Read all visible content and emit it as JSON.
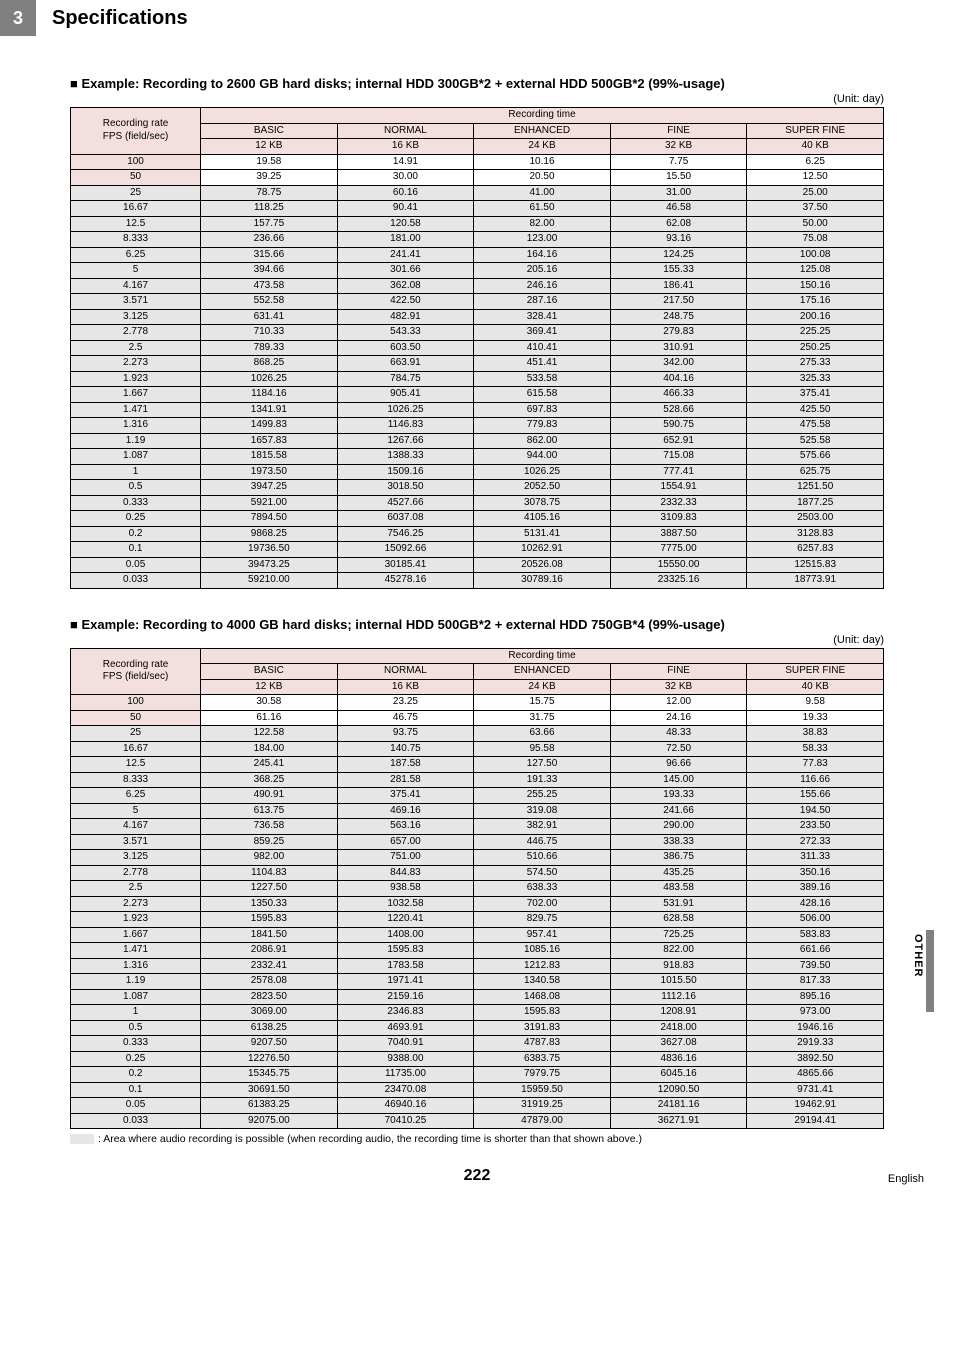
{
  "chapter_number": "3",
  "chapter_title": "Specifications",
  "unit_label": "(Unit: day)",
  "sidebar": "OTHER",
  "page_number": "222",
  "language": "English",
  "note": ": Area where audio recording is possible (when recording audio, the recording time is shorter than that shown above.)",
  "tables": [
    {
      "title": "Example: Recording to 2600 GB hard disks; internal HDD 300GB*2 + external HDD 500GB*2 (99%-usage)",
      "col_rate_label": "Recording rate FPS (field/sec)",
      "col_group_label": "Recording time",
      "columns": [
        {
          "name": "BASIC",
          "sub": "12 KB"
        },
        {
          "name": "NORMAL",
          "sub": "16 KB"
        },
        {
          "name": "ENHANCED",
          "sub": "24 KB"
        },
        {
          "name": "FINE",
          "sub": "32 KB"
        },
        {
          "name": "SUPER FINE",
          "sub": "40 KB"
        }
      ],
      "rows": [
        {
          "r": "100",
          "v": [
            "19.58",
            "14.91",
            "10.16",
            "7.75",
            "6.25"
          ],
          "audio": false
        },
        {
          "r": "50",
          "v": [
            "39.25",
            "30.00",
            "20.50",
            "15.50",
            "12.50"
          ],
          "audio": false
        },
        {
          "r": "25",
          "v": [
            "78.75",
            "60.16",
            "41.00",
            "31.00",
            "25.00"
          ],
          "audio": true
        },
        {
          "r": "16.67",
          "v": [
            "118.25",
            "90.41",
            "61.50",
            "46.58",
            "37.50"
          ],
          "audio": true
        },
        {
          "r": "12.5",
          "v": [
            "157.75",
            "120.58",
            "82.00",
            "62.08",
            "50.00"
          ],
          "audio": true
        },
        {
          "r": "8.333",
          "v": [
            "236.66",
            "181.00",
            "123.00",
            "93.16",
            "75.08"
          ],
          "audio": true
        },
        {
          "r": "6.25",
          "v": [
            "315.66",
            "241.41",
            "164.16",
            "124.25",
            "100.08"
          ],
          "audio": true
        },
        {
          "r": "5",
          "v": [
            "394.66",
            "301.66",
            "205.16",
            "155.33",
            "125.08"
          ],
          "audio": true
        },
        {
          "r": "4.167",
          "v": [
            "473.58",
            "362.08",
            "246.16",
            "186.41",
            "150.16"
          ],
          "audio": true
        },
        {
          "r": "3.571",
          "v": [
            "552.58",
            "422.50",
            "287.16",
            "217.50",
            "175.16"
          ],
          "audio": true
        },
        {
          "r": "3.125",
          "v": [
            "631.41",
            "482.91",
            "328.41",
            "248.75",
            "200.16"
          ],
          "audio": true
        },
        {
          "r": "2.778",
          "v": [
            "710.33",
            "543.33",
            "369.41",
            "279.83",
            "225.25"
          ],
          "audio": true
        },
        {
          "r": "2.5",
          "v": [
            "789.33",
            "603.50",
            "410.41",
            "310.91",
            "250.25"
          ],
          "audio": true
        },
        {
          "r": "2.273",
          "v": [
            "868.25",
            "663.91",
            "451.41",
            "342.00",
            "275.33"
          ],
          "audio": true
        },
        {
          "r": "1.923",
          "v": [
            "1026.25",
            "784.75",
            "533.58",
            "404.16",
            "325.33"
          ],
          "audio": true
        },
        {
          "r": "1.667",
          "v": [
            "1184.16",
            "905.41",
            "615.58",
            "466.33",
            "375.41"
          ],
          "audio": true
        },
        {
          "r": "1.471",
          "v": [
            "1341.91",
            "1026.25",
            "697.83",
            "528.66",
            "425.50"
          ],
          "audio": true
        },
        {
          "r": "1.316",
          "v": [
            "1499.83",
            "1146.83",
            "779.83",
            "590.75",
            "475.58"
          ],
          "audio": true
        },
        {
          "r": "1.19",
          "v": [
            "1657.83",
            "1267.66",
            "862.00",
            "652.91",
            "525.58"
          ],
          "audio": true
        },
        {
          "r": "1.087",
          "v": [
            "1815.58",
            "1388.33",
            "944.00",
            "715.08",
            "575.66"
          ],
          "audio": true
        },
        {
          "r": "1",
          "v": [
            "1973.50",
            "1509.16",
            "1026.25",
            "777.41",
            "625.75"
          ],
          "audio": true
        },
        {
          "r": "0.5",
          "v": [
            "3947.25",
            "3018.50",
            "2052.50",
            "1554.91",
            "1251.50"
          ],
          "audio": true
        },
        {
          "r": "0.333",
          "v": [
            "5921.00",
            "4527.66",
            "3078.75",
            "2332.33",
            "1877.25"
          ],
          "audio": true
        },
        {
          "r": "0.25",
          "v": [
            "7894.50",
            "6037.08",
            "4105.16",
            "3109.83",
            "2503.00"
          ],
          "audio": true
        },
        {
          "r": "0.2",
          "v": [
            "9868.25",
            "7546.25",
            "5131.41",
            "3887.50",
            "3128.83"
          ],
          "audio": true
        },
        {
          "r": "0.1",
          "v": [
            "19736.50",
            "15092.66",
            "10262.91",
            "7775.00",
            "6257.83"
          ],
          "audio": true
        },
        {
          "r": "0.05",
          "v": [
            "39473.25",
            "30185.41",
            "20526.08",
            "15550.00",
            "12515.83"
          ],
          "audio": true
        },
        {
          "r": "0.033",
          "v": [
            "59210.00",
            "45278.16",
            "30789.16",
            "23325.16",
            "18773.91"
          ],
          "audio": true
        }
      ]
    },
    {
      "title": "Example: Recording to 4000 GB hard disks; internal HDD 500GB*2 + external HDD 750GB*4 (99%-usage)",
      "col_rate_label": "Recording rate FPS (field/sec)",
      "col_group_label": "Recording time",
      "columns": [
        {
          "name": "BASIC",
          "sub": "12 KB"
        },
        {
          "name": "NORMAL",
          "sub": "16 KB"
        },
        {
          "name": "ENHANCED",
          "sub": "24 KB"
        },
        {
          "name": "FINE",
          "sub": "32 KB"
        },
        {
          "name": "SUPER FINE",
          "sub": "40 KB"
        }
      ],
      "rows": [
        {
          "r": "100",
          "v": [
            "30.58",
            "23.25",
            "15.75",
            "12.00",
            "9.58"
          ],
          "audio": false
        },
        {
          "r": "50",
          "v": [
            "61.16",
            "46.75",
            "31.75",
            "24.16",
            "19.33"
          ],
          "audio": false
        },
        {
          "r": "25",
          "v": [
            "122.58",
            "93.75",
            "63.66",
            "48.33",
            "38.83"
          ],
          "audio": true
        },
        {
          "r": "16.67",
          "v": [
            "184.00",
            "140.75",
            "95.58",
            "72.50",
            "58.33"
          ],
          "audio": true
        },
        {
          "r": "12.5",
          "v": [
            "245.41",
            "187.58",
            "127.50",
            "96.66",
            "77.83"
          ],
          "audio": true
        },
        {
          "r": "8.333",
          "v": [
            "368.25",
            "281.58",
            "191.33",
            "145.00",
            "116.66"
          ],
          "audio": true
        },
        {
          "r": "6.25",
          "v": [
            "490.91",
            "375.41",
            "255.25",
            "193.33",
            "155.66"
          ],
          "audio": true
        },
        {
          "r": "5",
          "v": [
            "613.75",
            "469.16",
            "319.08",
            "241.66",
            "194.50"
          ],
          "audio": true
        },
        {
          "r": "4.167",
          "v": [
            "736.58",
            "563.16",
            "382.91",
            "290.00",
            "233.50"
          ],
          "audio": true
        },
        {
          "r": "3.571",
          "v": [
            "859.25",
            "657.00",
            "446.75",
            "338.33",
            "272.33"
          ],
          "audio": true
        },
        {
          "r": "3.125",
          "v": [
            "982.00",
            "751.00",
            "510.66",
            "386.75",
            "311.33"
          ],
          "audio": true
        },
        {
          "r": "2.778",
          "v": [
            "1104.83",
            "844.83",
            "574.50",
            "435.25",
            "350.16"
          ],
          "audio": true
        },
        {
          "r": "2.5",
          "v": [
            "1227.50",
            "938.58",
            "638.33",
            "483.58",
            "389.16"
          ],
          "audio": true
        },
        {
          "r": "2.273",
          "v": [
            "1350.33",
            "1032.58",
            "702.00",
            "531.91",
            "428.16"
          ],
          "audio": true
        },
        {
          "r": "1.923",
          "v": [
            "1595.83",
            "1220.41",
            "829.75",
            "628.58",
            "506.00"
          ],
          "audio": true
        },
        {
          "r": "1.667",
          "v": [
            "1841.50",
            "1408.00",
            "957.41",
            "725.25",
            "583.83"
          ],
          "audio": true
        },
        {
          "r": "1.471",
          "v": [
            "2086.91",
            "1595.83",
            "1085.16",
            "822.00",
            "661.66"
          ],
          "audio": true
        },
        {
          "r": "1.316",
          "v": [
            "2332.41",
            "1783.58",
            "1212.83",
            "918.83",
            "739.50"
          ],
          "audio": true
        },
        {
          "r": "1.19",
          "v": [
            "2578.08",
            "1971.41",
            "1340.58",
            "1015.50",
            "817.33"
          ],
          "audio": true
        },
        {
          "r": "1.087",
          "v": [
            "2823.50",
            "2159.16",
            "1468.08",
            "1112.16",
            "895.16"
          ],
          "audio": true
        },
        {
          "r": "1",
          "v": [
            "3069.00",
            "2346.83",
            "1595.83",
            "1208.91",
            "973.00"
          ],
          "audio": true
        },
        {
          "r": "0.5",
          "v": [
            "6138.25",
            "4693.91",
            "3191.83",
            "2418.00",
            "1946.16"
          ],
          "audio": true
        },
        {
          "r": "0.333",
          "v": [
            "9207.50",
            "7040.91",
            "4787.83",
            "3627.08",
            "2919.33"
          ],
          "audio": true
        },
        {
          "r": "0.25",
          "v": [
            "12276.50",
            "9388.00",
            "6383.75",
            "4836.16",
            "3892.50"
          ],
          "audio": true
        },
        {
          "r": "0.2",
          "v": [
            "15345.75",
            "11735.00",
            "7979.75",
            "6045.16",
            "4865.66"
          ],
          "audio": true
        },
        {
          "r": "0.1",
          "v": [
            "30691.50",
            "23470.08",
            "15959.50",
            "12090.50",
            "9731.41"
          ],
          "audio": true
        },
        {
          "r": "0.05",
          "v": [
            "61383.25",
            "46940.16",
            "31919.25",
            "24181.16",
            "19462.91"
          ],
          "audio": true
        },
        {
          "r": "0.033",
          "v": [
            "92075.00",
            "70410.25",
            "47879.00",
            "36271.91",
            "29194.41"
          ],
          "audio": true
        }
      ]
    }
  ]
}
